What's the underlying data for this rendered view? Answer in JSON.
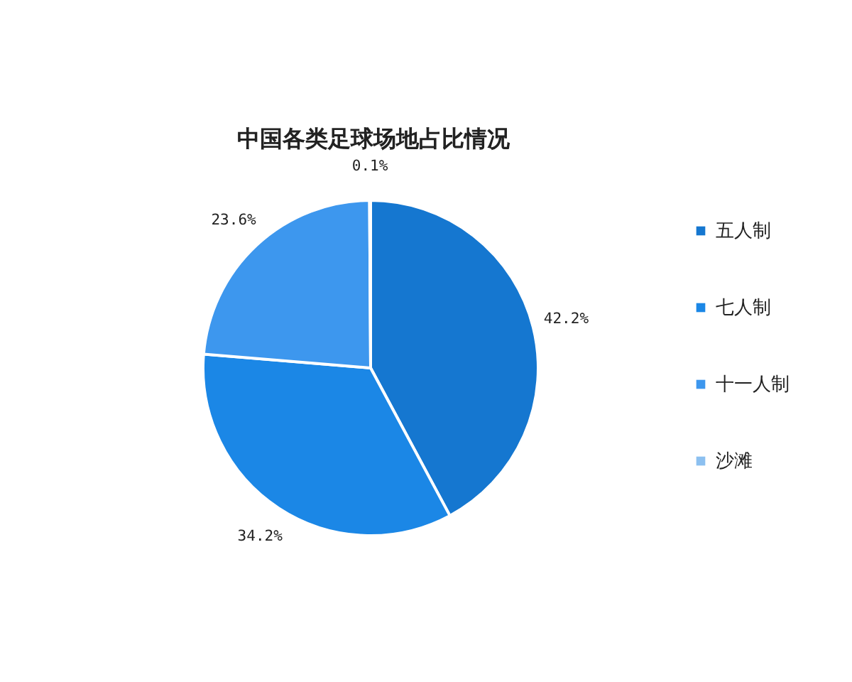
{
  "chart_data": {
    "type": "pie",
    "title": "中国各类足球场地占比情况",
    "categories": [
      "五人制",
      "七人制",
      "十一人制",
      "沙滩"
    ],
    "values": [
      42.2,
      34.2,
      23.6,
      0.1
    ],
    "value_labels": [
      "42.2%",
      "34.2%",
      "23.6%",
      "0.1%"
    ],
    "colors": [
      "#1577d0",
      "#1b87e6",
      "#3d97ee",
      "#8cc0f0"
    ],
    "legend": "right"
  }
}
